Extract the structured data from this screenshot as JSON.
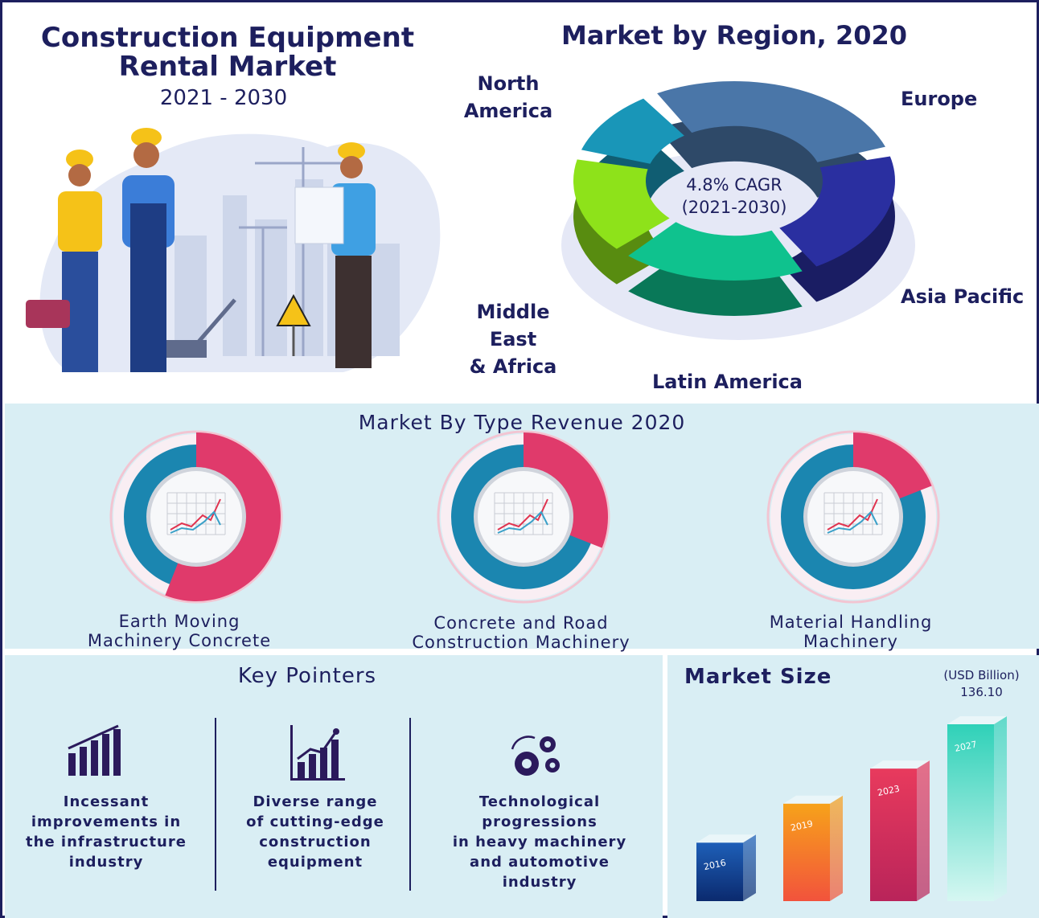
{
  "header": {
    "title_line1": "Construction Equipment",
    "title_line2": "Rental Market",
    "years": "2021 - 2030"
  },
  "region": {
    "title": "Market by Region, 2020",
    "cagr_line1": "4.8% CAGR",
    "cagr_line2": "(2021-2030)",
    "labels": {
      "north_america_1": "North",
      "north_america_2": "America",
      "europe": "Europe",
      "asia_pacific": "Asia Pacific",
      "latin_america": "Latin America",
      "mea_1": "Middle East",
      "mea_2": "& Africa"
    },
    "colors": {
      "north_america": "#4a76a8",
      "europe": "#2a2fa0",
      "asia_pacific": "#0fc28e",
      "latin_america": "#8ee21a",
      "mea": "#1996b8"
    }
  },
  "type_revenue": {
    "title": "Market By Type Revenue 2020",
    "items": [
      {
        "line1": "Earth Moving",
        "line2": "Machinery Concrete",
        "share": 0.56
      },
      {
        "line1": "Concrete and Road",
        "line2": "Construction Machinery",
        "share": 0.31
      },
      {
        "line1": "Material Handling",
        "line2": "Machinery",
        "share": 0.19
      }
    ],
    "colors": {
      "share": "#e03a6b",
      "rest": "#1b86b0"
    }
  },
  "key_pointers": {
    "title": "Key Pointers",
    "items": [
      {
        "icon": "bar-chart-icon",
        "lines": [
          "Incessant",
          "improvements in",
          "the infrastructure",
          "industry"
        ]
      },
      {
        "icon": "growth-chart-icon",
        "lines": [
          "Diverse range",
          "of cutting-edge",
          "construction",
          "equipment"
        ]
      },
      {
        "icon": "gears-icon",
        "lines": [
          "Technological progressions",
          "in heavy machinery",
          "and automotive",
          "industry"
        ]
      }
    ]
  },
  "market_size": {
    "title": "Market Size",
    "unit": "(USD Billion)",
    "value_label": "136.10"
  },
  "chart_data": [
    {
      "type": "pie",
      "title": "Market by Region, 2020",
      "categories": [
        "North America",
        "Europe",
        "Asia Pacific",
        "Latin America",
        "Middle East & Africa"
      ],
      "values": [
        29,
        22,
        20,
        17,
        12
      ],
      "annotations": [
        "4.8% CAGR (2021-2030)"
      ]
    },
    {
      "type": "bar",
      "title": "Market Size",
      "ylabel": "(USD Billion)",
      "categories": [
        "2016",
        "2019",
        "2023",
        "2027"
      ],
      "values": [
        45,
        75,
        102,
        136.1
      ],
      "data_labels": [
        null,
        null,
        null,
        "136.10"
      ]
    }
  ]
}
